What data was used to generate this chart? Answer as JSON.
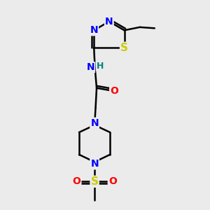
{
  "bg_color": "#ebebeb",
  "bond_color": "#000000",
  "bond_width": 1.8,
  "atom_colors": {
    "N": "#0000FF",
    "O": "#FF0000",
    "S": "#CCCC00",
    "H": "#008080",
    "C": "#000000"
  },
  "figsize": [
    3.0,
    3.0
  ],
  "dpi": 100,
  "xlim": [
    0,
    10
  ],
  "ylim": [
    0,
    10
  ],
  "font_size_atom": 10
}
